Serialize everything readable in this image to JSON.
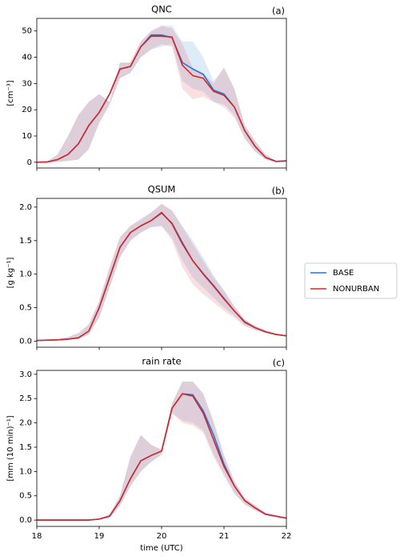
{
  "chart_data": [
    {
      "type": "line",
      "title": "QNC",
      "panel_label": "(a)",
      "ylabel": "[cm⁻³]",
      "x": [
        18,
        18.1667,
        18.3333,
        18.5,
        18.6667,
        18.8333,
        19,
        19.1667,
        19.3333,
        19.5,
        19.6667,
        19.8333,
        20,
        20.1667,
        20.3333,
        20.5,
        20.6667,
        20.8333,
        21,
        21.1667,
        21.3333,
        21.5,
        21.6667,
        21.8333,
        22
      ],
      "xlim": [
        18,
        22
      ],
      "xticks": [
        18,
        19,
        20,
        21,
        22
      ],
      "ylim": [
        -2.2,
        54.8
      ],
      "yticks": [
        0,
        10,
        20,
        30,
        40,
        50
      ],
      "series": [
        {
          "name": "BASE",
          "color": "#1f77d4",
          "values": [
            0,
            0.1,
            1,
            3,
            7,
            14,
            19,
            26,
            35.5,
            36.5,
            44,
            48.5,
            48.5,
            47.5,
            38,
            35.5,
            33.5,
            27.5,
            26,
            21,
            12,
            6,
            1.8,
            0.3,
            0.5
          ],
          "lower": [
            0,
            0,
            0.1,
            0.5,
            1,
            5,
            15,
            22,
            32,
            34,
            40,
            43,
            44,
            45,
            31,
            28,
            27,
            23,
            22,
            18,
            9,
            4,
            1,
            0,
            0.2
          ],
          "upper": [
            0,
            0.3,
            3,
            10,
            18,
            23,
            26,
            23,
            38,
            38,
            46,
            50,
            52,
            52,
            46,
            46,
            40,
            31,
            36,
            28,
            14,
            8,
            3,
            0.5,
            1
          ]
        },
        {
          "name": "NONURBAN",
          "color": "#d62728",
          "values": [
            0,
            0.1,
            1,
            3,
            7,
            14,
            19,
            26,
            35.5,
            36.5,
            44,
            48,
            48,
            47.7,
            37,
            33,
            32,
            27,
            25.5,
            21,
            12,
            6,
            1.8,
            0.3,
            0.5
          ],
          "lower": [
            0,
            0,
            0.1,
            0.5,
            1,
            5,
            15,
            22,
            32,
            34,
            40,
            43,
            45,
            44,
            28,
            24,
            25,
            23,
            21,
            17,
            9,
            4,
            1,
            0,
            0.2
          ],
          "upper": [
            0,
            0.3,
            3,
            10,
            18,
            23,
            26,
            23,
            38,
            38,
            46,
            50,
            52,
            51,
            45,
            36,
            34,
            30,
            36,
            28,
            14,
            8,
            3,
            0.5,
            1
          ]
        }
      ]
    },
    {
      "type": "line",
      "title": "QSUM",
      "panel_label": "(b)",
      "ylabel": "[g kg⁻¹]",
      "x": [
        18,
        18.1667,
        18.3333,
        18.5,
        18.6667,
        18.8333,
        19,
        19.1667,
        19.3333,
        19.5,
        19.6667,
        19.8333,
        20,
        20.1667,
        20.3333,
        20.5,
        20.6667,
        20.8333,
        21,
        21.1667,
        21.3333,
        21.5,
        21.6667,
        21.8333,
        22
      ],
      "xlim": [
        18,
        22
      ],
      "xticks": [
        18,
        19,
        20,
        21,
        22
      ],
      "ylim": [
        -0.09,
        2.13
      ],
      "yticks": [
        {
          "value": 0,
          "label": "0.0"
        },
        0.5,
        {
          "value": 1,
          "label": "1.0"
        },
        1.5,
        {
          "value": 2,
          "label": "2.0"
        }
      ],
      "series": [
        {
          "color": "#1f77d4",
          "values": [
            0.01,
            0.015,
            0.02,
            0.03,
            0.05,
            0.15,
            0.5,
            0.95,
            1.4,
            1.62,
            1.72,
            1.8,
            1.91,
            1.76,
            1.47,
            1.2,
            1.01,
            0.83,
            0.64,
            0.45,
            0.29,
            0.2,
            0.14,
            0.1,
            0.08
          ],
          "lower": [
            0.01,
            0.01,
            0.015,
            0.02,
            0.03,
            0.1,
            0.35,
            0.8,
            1.25,
            1.5,
            1.62,
            1.7,
            1.72,
            1.55,
            1.2,
            0.95,
            0.8,
            0.65,
            0.5,
            0.38,
            0.24,
            0.17,
            0.12,
            0.09,
            0.07
          ],
          "upper": [
            0.01,
            0.02,
            0.03,
            0.06,
            0.12,
            0.25,
            0.6,
            1.1,
            1.55,
            1.72,
            1.82,
            1.92,
            2.05,
            1.95,
            1.72,
            1.5,
            1.25,
            0.98,
            0.76,
            0.52,
            0.32,
            0.23,
            0.16,
            0.11,
            0.09
          ]
        },
        {
          "color": "#d62728",
          "values": [
            0.01,
            0.015,
            0.02,
            0.03,
            0.05,
            0.15,
            0.5,
            0.95,
            1.4,
            1.62,
            1.72,
            1.8,
            1.92,
            1.75,
            1.45,
            1.2,
            1.0,
            0.82,
            0.63,
            0.45,
            0.28,
            0.2,
            0.14,
            0.1,
            0.08
          ],
          "lower": [
            0.01,
            0.01,
            0.015,
            0.02,
            0.03,
            0.1,
            0.35,
            0.8,
            1.25,
            1.5,
            1.62,
            1.7,
            1.72,
            1.5,
            1.1,
            0.85,
            0.7,
            0.58,
            0.45,
            0.35,
            0.22,
            0.16,
            0.12,
            0.09,
            0.07
          ],
          "upper": [
            0.01,
            0.02,
            0.03,
            0.06,
            0.12,
            0.25,
            0.6,
            1.1,
            1.55,
            1.72,
            1.82,
            1.92,
            2.05,
            1.95,
            1.7,
            1.45,
            1.2,
            0.95,
            0.75,
            0.52,
            0.32,
            0.23,
            0.16,
            0.11,
            0.09
          ]
        }
      ]
    },
    {
      "type": "line",
      "title": "rain rate",
      "panel_label": "(c)",
      "ylabel": "[mm (10 min)⁻¹]",
      "xlabel": "time (UTC)",
      "x": [
        18,
        18.1667,
        18.3333,
        18.5,
        18.6667,
        18.8333,
        19,
        19.1667,
        19.3333,
        19.5,
        19.6667,
        19.8333,
        20,
        20.1667,
        20.3333,
        20.5,
        20.6667,
        20.8333,
        21,
        21.1667,
        21.3333,
        21.5,
        21.6667,
        21.8333,
        22
      ],
      "xlim": [
        18,
        22
      ],
      "xticks": [
        18,
        19,
        20,
        21,
        22
      ],
      "ylim": [
        -0.13,
        3.08
      ],
      "yticks": [
        {
          "value": 0,
          "label": "0.0"
        },
        0.5,
        {
          "value": 1,
          "label": "1.0"
        },
        1.5,
        {
          "value": 2,
          "label": "2.0"
        },
        2.5,
        {
          "value": 3,
          "label": "3.0"
        }
      ],
      "series": [
        {
          "color": "#1f77d4",
          "values": [
            0,
            0,
            0,
            0,
            0,
            0,
            0.02,
            0.08,
            0.4,
            0.85,
            1.22,
            1.33,
            1.42,
            2.3,
            2.6,
            2.58,
            2.25,
            1.75,
            1.15,
            0.7,
            0.4,
            0.25,
            0.12,
            0.08,
            0.04
          ],
          "lower": [
            0,
            0,
            0,
            0,
            0,
            0,
            0.01,
            0.05,
            0.3,
            0.7,
            1.0,
            1.2,
            1.35,
            2.2,
            2.05,
            2.0,
            1.85,
            1.35,
            0.95,
            0.55,
            0.32,
            0.2,
            0.1,
            0.06,
            0.03
          ],
          "upper": [
            0,
            0,
            0,
            0,
            0,
            0,
            0.03,
            0.12,
            0.5,
            1.3,
            1.75,
            1.55,
            1.45,
            2.4,
            2.85,
            2.85,
            2.6,
            2.05,
            1.35,
            0.8,
            0.45,
            0.3,
            0.15,
            0.1,
            0.05
          ]
        },
        {
          "color": "#d62728",
          "values": [
            0,
            0,
            0,
            0,
            0,
            0,
            0.02,
            0.08,
            0.4,
            0.85,
            1.22,
            1.33,
            1.42,
            2.3,
            2.6,
            2.55,
            2.2,
            1.65,
            1.1,
            0.7,
            0.4,
            0.25,
            0.12,
            0.08,
            0.04
          ],
          "lower": [
            0,
            0,
            0,
            0,
            0,
            0,
            0.01,
            0.05,
            0.3,
            0.7,
            1.0,
            1.2,
            1.35,
            2.2,
            2.0,
            1.95,
            1.8,
            1.3,
            0.9,
            0.55,
            0.32,
            0.2,
            0.1,
            0.06,
            0.03
          ],
          "upper": [
            0,
            0,
            0,
            0,
            0,
            0,
            0.03,
            0.12,
            0.5,
            1.3,
            1.75,
            1.55,
            1.45,
            2.4,
            2.85,
            2.85,
            2.6,
            2.0,
            1.3,
            0.8,
            0.45,
            0.3,
            0.15,
            0.1,
            0.05
          ]
        }
      ]
    }
  ]
}
